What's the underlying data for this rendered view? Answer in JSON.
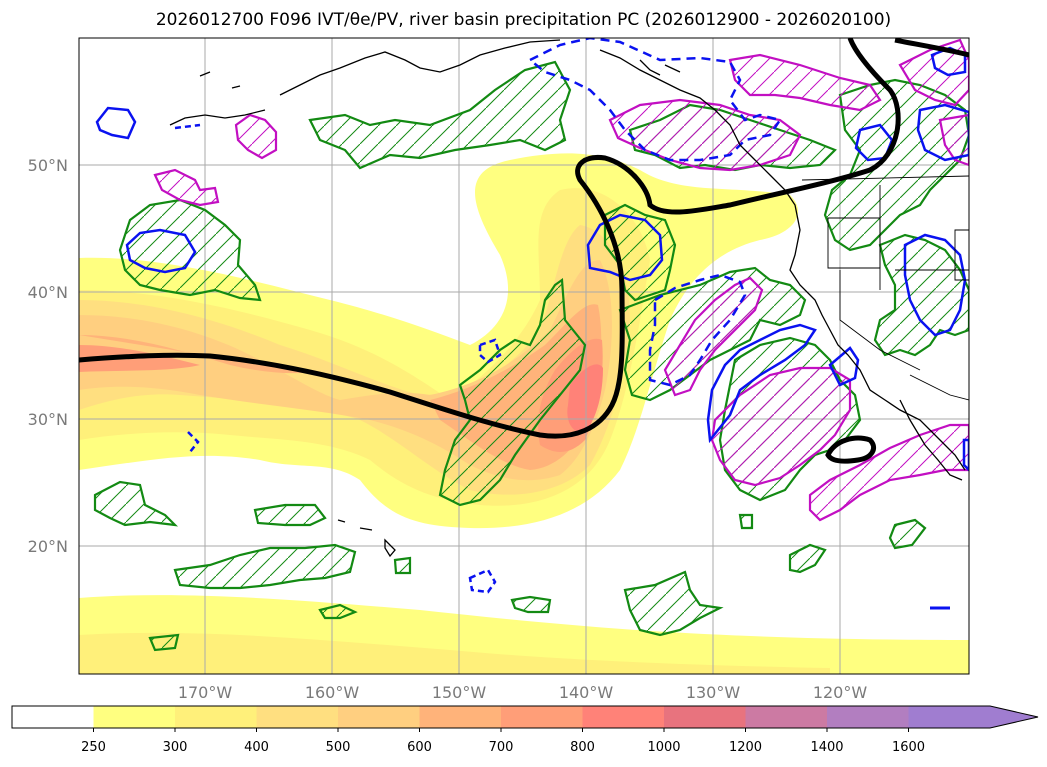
{
  "title": "2026012700 F096 IVT/θe/PV, river basin precipitation PC (2026012900 - 2026020100)",
  "map": {
    "lat_ticks": [
      "50°N",
      "40°N",
      "30°N",
      "20°N"
    ],
    "lon_ticks": [
      "170°W",
      "160°W",
      "150°W",
      "140°W",
      "130°W",
      "120°W"
    ],
    "contour_colors": {
      "ivt_thick": "#000000",
      "green_hatched": "#138a13",
      "magenta_hatched": "#c20fc2",
      "blue_contour": "#0a12f0"
    }
  },
  "colorbar": {
    "levels": [
      "250",
      "300",
      "400",
      "500",
      "600",
      "700",
      "800",
      "1000",
      "1200",
      "1400",
      "1600"
    ],
    "colors": [
      "#ffffff",
      "#ffff80",
      "#fff07a",
      "#ffdf80",
      "#ffcf80",
      "#ffb37a",
      "#ff9e78",
      "#ff8278",
      "#e8737e",
      "#cc7aa3",
      "#b27ec0",
      "#a07dd0"
    ],
    "extend": "max"
  }
}
